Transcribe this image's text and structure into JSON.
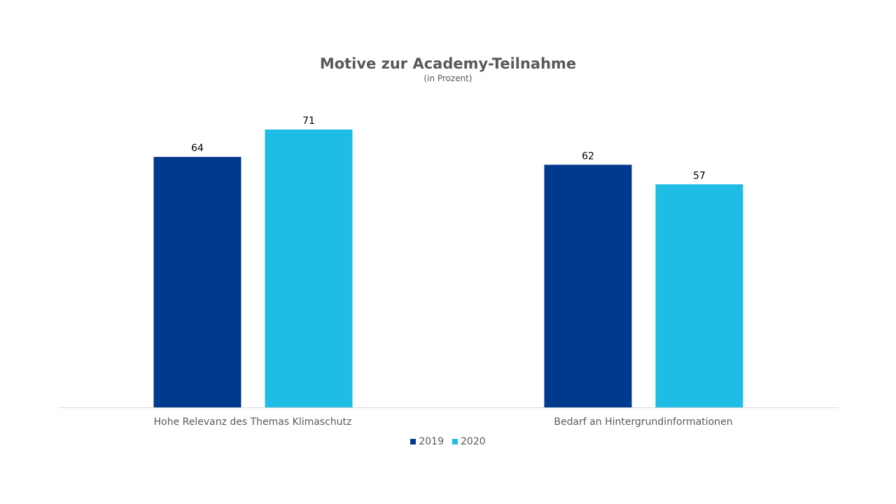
{
  "chart_data": {
    "type": "bar",
    "title": "Motive zur Academy-Teilnahme",
    "subtitle": "(in Prozent)",
    "categories": [
      "Hohe Relevanz des Themas Klimaschutz",
      "Bedarf an Hintergrundinformationen"
    ],
    "series": [
      {
        "name": "2019",
        "values": [
          64,
          62
        ],
        "color": "#003A8C"
      },
      {
        "name": "2020",
        "values": [
          71,
          57
        ],
        "color": "#1FBDE6"
      }
    ],
    "xlabel": "",
    "ylabel": "",
    "ylim": [
      0,
      80
    ],
    "grid": false,
    "legend": "bottom",
    "data_labels": true
  }
}
